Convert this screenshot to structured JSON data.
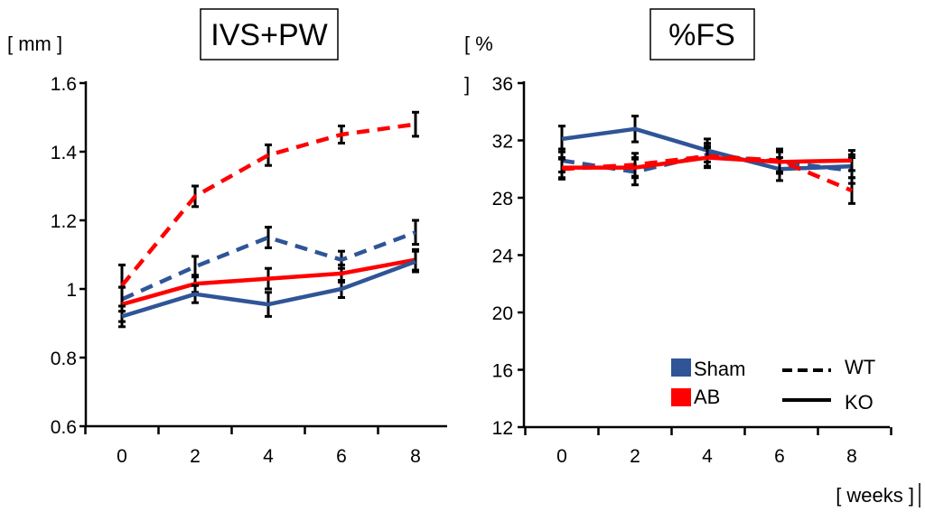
{
  "colors": {
    "sham": "#2f5597",
    "ab": "#ff0000",
    "axis": "#000000",
    "errorbar": "#000000"
  },
  "legend": {
    "groups": [
      {
        "label": "Sham",
        "color": "#2f5597"
      },
      {
        "label": "AB",
        "color": "#ff0000"
      }
    ],
    "genotypes": [
      {
        "label": "WT",
        "style": "dashed"
      },
      {
        "label": "KO",
        "style": "solid"
      }
    ],
    "placement": "lower-right of right panel"
  },
  "x_unit": "[ weeks ]",
  "chart_data": [
    {
      "type": "line",
      "title": "IVS+PW",
      "ylabel": "[ mm ]",
      "xlabel": "",
      "x": [
        0,
        2,
        4,
        6,
        8
      ],
      "xticks": [
        "0",
        "2",
        "4",
        "6",
        "8"
      ],
      "ylim": [
        0.6,
        1.6
      ],
      "yticks": [
        "0.6",
        "0.8",
        "1",
        "1.2",
        "1.4",
        "1.6"
      ],
      "ytick_values": [
        0.6,
        0.8,
        1.0,
        1.2,
        1.4,
        1.6
      ],
      "grid": false,
      "series": [
        {
          "group": "AB",
          "genotype": "WT",
          "color": "#ff0000",
          "style": "dashed",
          "values": [
            1.01,
            1.27,
            1.39,
            1.45,
            1.48
          ],
          "error": [
            0.06,
            0.03,
            0.03,
            0.025,
            0.035
          ]
        },
        {
          "group": "Sham",
          "genotype": "WT",
          "color": "#2f5597",
          "style": "dashed",
          "values": [
            0.97,
            1.065,
            1.15,
            1.085,
            1.165
          ],
          "error": [
            0.035,
            0.03,
            0.03,
            0.025,
            0.035
          ]
        },
        {
          "group": "AB",
          "genotype": "KO",
          "color": "#ff0000",
          "style": "solid",
          "values": [
            0.955,
            1.015,
            1.03,
            1.045,
            1.085
          ],
          "error": [
            0.05,
            0.025,
            0.03,
            0.025,
            0.03
          ]
        },
        {
          "group": "Sham",
          "genotype": "KO",
          "color": "#2f5597",
          "style": "solid",
          "values": [
            0.92,
            0.985,
            0.955,
            1.0,
            1.08
          ],
          "error": [
            0.03,
            0.025,
            0.035,
            0.025,
            0.03
          ]
        }
      ]
    },
    {
      "type": "line",
      "title": "%FS",
      "ylabel": "[ %",
      "ylabel_cont": "]",
      "xlabel": "",
      "x": [
        0,
        2,
        4,
        6,
        8
      ],
      "xticks": [
        "0",
        "2",
        "4",
        "6",
        "8"
      ],
      "ylim": [
        12,
        36
      ],
      "yticks": [
        "12",
        "16",
        "20",
        "24",
        "28",
        "32",
        "36"
      ],
      "ytick_values": [
        12,
        16,
        20,
        24,
        28,
        32,
        36
      ],
      "grid": false,
      "series": [
        {
          "group": "Sham",
          "genotype": "KO",
          "color": "#2f5597",
          "style": "solid",
          "values": [
            32.1,
            32.8,
            31.3,
            30.0,
            30.2
          ],
          "error": [
            0.9,
            0.9,
            0.8,
            0.8,
            0.8
          ]
        },
        {
          "group": "Sham",
          "genotype": "WT",
          "color": "#2f5597",
          "style": "dashed",
          "values": [
            30.6,
            29.8,
            31.0,
            30.5,
            29.9
          ],
          "error": [
            0.8,
            0.9,
            0.8,
            0.8,
            0.9
          ]
        },
        {
          "group": "AB",
          "genotype": "WT",
          "color": "#ff0000",
          "style": "dashed",
          "values": [
            30.0,
            30.3,
            30.9,
            30.6,
            28.5
          ],
          "error": [
            0.7,
            0.8,
            0.7,
            0.8,
            0.9
          ]
        },
        {
          "group": "AB",
          "genotype": "KO",
          "color": "#ff0000",
          "style": "solid",
          "values": [
            30.1,
            30.1,
            30.8,
            30.5,
            30.6
          ],
          "error": [
            0.7,
            0.7,
            0.7,
            0.7,
            0.7
          ]
        }
      ]
    }
  ]
}
